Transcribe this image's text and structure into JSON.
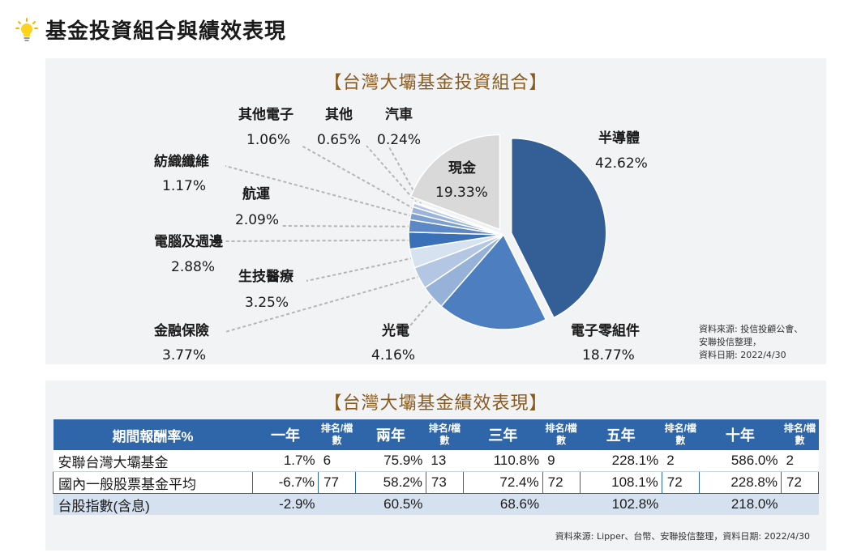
{
  "page": {
    "title": "基金投資組合與績效表現"
  },
  "portfolio": {
    "title": "【台灣大壩基金投資組合】",
    "source_lines": [
      "資料來源: 投信投顧公會、",
      "安聯投信整理，",
      "資料日期:  2022/4/30"
    ]
  },
  "chart_data": {
    "type": "pie",
    "title": "【台灣大壩基金投資組合】",
    "slices": [
      {
        "name": "半導體",
        "value": 42.62,
        "pct": "42.62%",
        "color": "#345f96"
      },
      {
        "name": "電子零組件",
        "value": 18.77,
        "pct": "18.77%",
        "color": "#4d7fc0"
      },
      {
        "name": "光電",
        "value": 4.16,
        "pct": "4.16%",
        "color": "#97b2d8"
      },
      {
        "name": "金融保險",
        "value": 3.77,
        "pct": "3.77%",
        "color": "#b3c6e3"
      },
      {
        "name": "生技醫療",
        "value": 3.25,
        "pct": "3.25%",
        "color": "#d7e2f1"
      },
      {
        "name": "電腦及週邊",
        "value": 2.88,
        "pct": "2.88%",
        "color": "#3a70b8"
      },
      {
        "name": "航運",
        "value": 2.09,
        "pct": "2.09%",
        "color": "#5c88c6"
      },
      {
        "name": "紡織纖維",
        "value": 1.17,
        "pct": "1.17%",
        "color": "#7d9fd0"
      },
      {
        "name": "其他電子",
        "value": 1.06,
        "pct": "1.06%",
        "color": "#9bb4dc"
      },
      {
        "name": "其他",
        "value": 0.65,
        "pct": "0.65%",
        "color": "#b6c8e6"
      },
      {
        "name": "汽車",
        "value": 0.24,
        "pct": "0.24%",
        "color": "#c9d6ec"
      },
      {
        "name": "現金",
        "value": 19.33,
        "pct": "19.33%",
        "color": "#d9d9d9"
      }
    ]
  },
  "performance": {
    "title": "【台灣大壩基金績效表現】",
    "headers": {
      "period": "期間報酬率%",
      "rank": "排名/檔數",
      "y1": "一年",
      "y2": "兩年",
      "y3": "三年",
      "y5": "五年",
      "y10": "十年"
    },
    "rows": [
      {
        "name": "安聯台灣大壩基金",
        "cells": [
          "1.7%",
          "6",
          "75.9%",
          "13",
          "110.8%",
          "9",
          "228.1%",
          "2",
          "586.0%",
          "2"
        ]
      },
      {
        "name": "國內一般股票基金平均",
        "cells": [
          "-6.7%",
          "77",
          "58.2%",
          "73",
          "72.4%",
          "72",
          "108.1%",
          "72",
          "228.8%",
          "72"
        ]
      },
      {
        "name": "台股指數(含息)",
        "cells": [
          "-2.9%",
          "",
          "60.5%",
          "",
          "68.6%",
          "",
          "102.8%",
          "",
          "218.0%",
          ""
        ]
      }
    ],
    "source": "資料來源: Lipper、台幣、安聯投信整理，資料日期:  2022/4/30"
  }
}
